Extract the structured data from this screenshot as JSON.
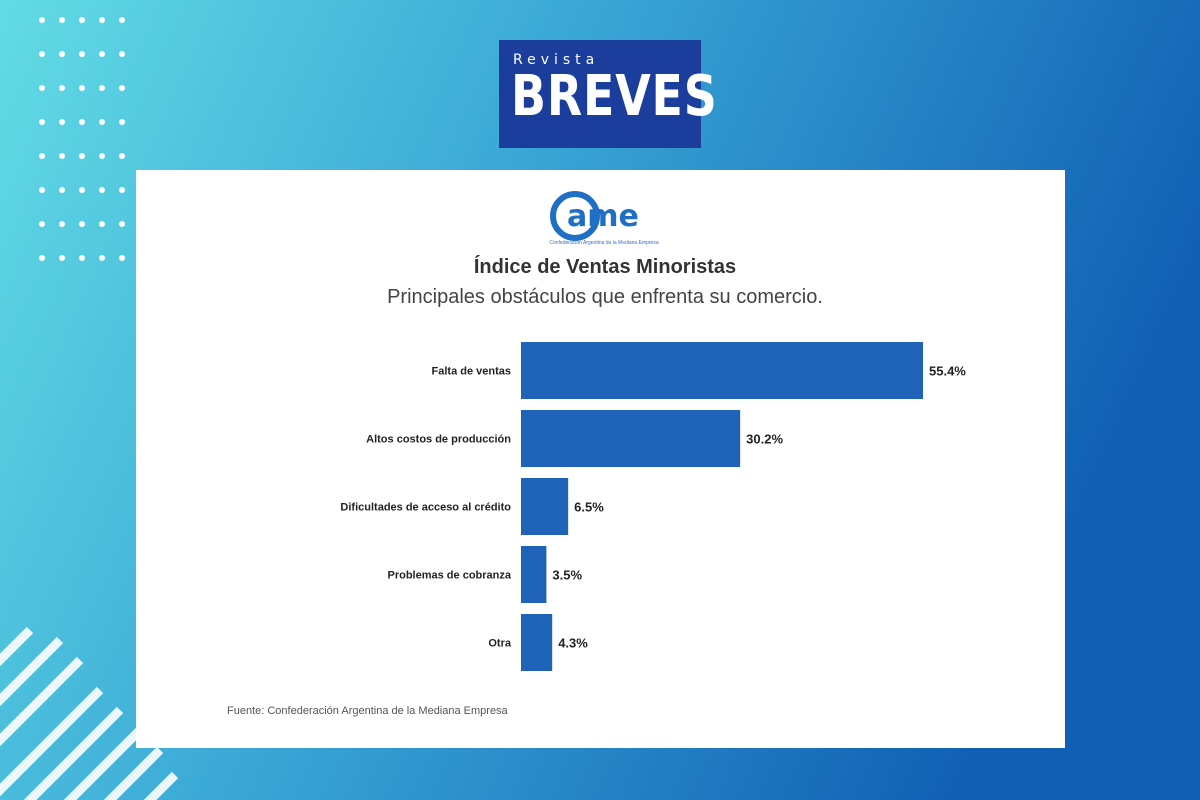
{
  "brand": {
    "small": "Revista",
    "big": "BREVES",
    "box_color": "#1b3e9c"
  },
  "org_logo": {
    "text": "ame",
    "subtext": "Confederación Argentina de la Mediana Empresa",
    "color": "#1f6fc5"
  },
  "colors": {
    "bar": "#1f63b8",
    "bg_left": "#5fd9e3",
    "bg_right": "#1163b6"
  },
  "chart_data": {
    "type": "bar",
    "orientation": "horizontal",
    "title": "Índice de Ventas Minoristas",
    "subtitle": "Principales obstáculos que enfrenta su comercio.",
    "categories": [
      "Falta de ventas",
      "Altos costos de producción",
      "Dificultades de acceso al crédito",
      "Problemas de cobranza",
      "Otra"
    ],
    "values": [
      55.4,
      30.2,
      6.5,
      3.5,
      4.3
    ],
    "value_labels": [
      "55.4%",
      "30.2%",
      "6.5%",
      "3.5%",
      "4.3%"
    ],
    "xlim": [
      0,
      55.4
    ],
    "grid": false,
    "source": "Fuente: Confederación Argentina de la Mediana Empresa"
  }
}
